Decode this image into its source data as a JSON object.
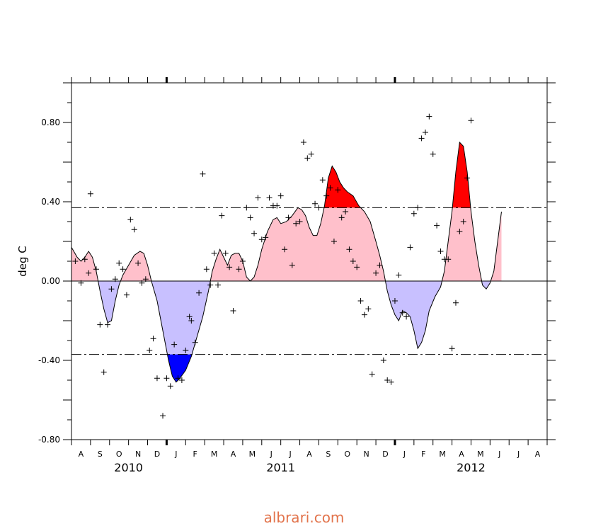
{
  "watermark": "albrari.com",
  "colors": {
    "warm_light": "#ffc0cb",
    "warm_strong": "#ff0000",
    "cool_light": "#c8c0ff",
    "cool_strong": "#0000ff",
    "line": "#000000"
  },
  "chart_data": {
    "type": "area",
    "ylabel": "deg C",
    "xlabel": "",
    "ylim": [
      -0.8,
      1.0
    ],
    "yticks": [
      -0.8,
      -0.4,
      0.0,
      0.4,
      0.8
    ],
    "ytick_labels": [
      "-0.80",
      "-0.40",
      "0.00",
      "0.40",
      "0.80"
    ],
    "thresholds": [
      0.37,
      -0.37
    ],
    "x_unit": "months since Jul 2010 start",
    "xlim": [
      0.5,
      25.5
    ],
    "month_labels": [
      "A",
      "S",
      "O",
      "N",
      "D",
      "J",
      "F",
      "M",
      "A",
      "M",
      "J",
      "J",
      "A",
      "S",
      "O",
      "N",
      "D",
      "J",
      "F",
      "M",
      "A",
      "M",
      "J",
      "J",
      "A"
    ],
    "year_labels": [
      {
        "text": "2010",
        "at": 3.0
      },
      {
        "text": "2011",
        "at": 11.0
      },
      {
        "text": "2012",
        "at": 21.0
      }
    ],
    "smoothed": [
      [
        0.5,
        0.17
      ],
      [
        0.8,
        0.12
      ],
      [
        1.0,
        0.1
      ],
      [
        1.2,
        0.12
      ],
      [
        1.4,
        0.15
      ],
      [
        1.6,
        0.12
      ],
      [
        1.8,
        0.05
      ],
      [
        2.0,
        -0.05
      ],
      [
        2.2,
        -0.14
      ],
      [
        2.4,
        -0.21
      ],
      [
        2.6,
        -0.2
      ],
      [
        2.8,
        -0.1
      ],
      [
        3.0,
        -0.02
      ],
      [
        3.2,
        0.03
      ],
      [
        3.5,
        0.08
      ],
      [
        3.8,
        0.13
      ],
      [
        4.1,
        0.15
      ],
      [
        4.3,
        0.14
      ],
      [
        4.5,
        0.08
      ],
      [
        4.7,
        0.0
      ],
      [
        5.0,
        -0.1
      ],
      [
        5.3,
        -0.25
      ],
      [
        5.6,
        -0.4
      ],
      [
        5.8,
        -0.48
      ],
      [
        6.0,
        -0.51
      ],
      [
        6.2,
        -0.49
      ],
      [
        6.5,
        -0.45
      ],
      [
        6.8,
        -0.38
      ],
      [
        7.1,
        -0.28
      ],
      [
        7.4,
        -0.18
      ],
      [
        7.7,
        -0.05
      ],
      [
        7.9,
        0.05
      ],
      [
        8.1,
        0.11
      ],
      [
        8.3,
        0.16
      ],
      [
        8.5,
        0.12
      ],
      [
        8.7,
        0.08
      ],
      [
        8.9,
        0.13
      ],
      [
        9.1,
        0.14
      ],
      [
        9.3,
        0.14
      ],
      [
        9.5,
        0.1
      ],
      [
        9.7,
        0.02
      ],
      [
        9.9,
        0.0
      ],
      [
        10.1,
        0.02
      ],
      [
        10.3,
        0.08
      ],
      [
        10.5,
        0.16
      ],
      [
        10.8,
        0.25
      ],
      [
        11.1,
        0.31
      ],
      [
        11.3,
        0.32
      ],
      [
        11.5,
        0.29
      ],
      [
        11.8,
        0.3
      ],
      [
        12.1,
        0.33
      ],
      [
        12.4,
        0.37
      ],
      [
        12.6,
        0.36
      ],
      [
        12.8,
        0.33
      ],
      [
        13.0,
        0.27
      ],
      [
        13.2,
        0.23
      ],
      [
        13.4,
        0.23
      ],
      [
        13.6,
        0.29
      ],
      [
        13.8,
        0.38
      ],
      [
        14.0,
        0.52
      ],
      [
        14.2,
        0.58
      ],
      [
        14.4,
        0.55
      ],
      [
        14.6,
        0.5
      ],
      [
        14.8,
        0.47
      ],
      [
        15.0,
        0.45
      ],
      [
        15.3,
        0.43
      ],
      [
        15.6,
        0.38
      ],
      [
        15.9,
        0.35
      ],
      [
        16.2,
        0.3
      ],
      [
        16.5,
        0.2
      ],
      [
        16.7,
        0.13
      ],
      [
        16.9,
        0.05
      ],
      [
        17.1,
        -0.05
      ],
      [
        17.3,
        -0.12
      ],
      [
        17.5,
        -0.17
      ],
      [
        17.7,
        -0.2
      ],
      [
        17.9,
        -0.15
      ],
      [
        18.1,
        -0.16
      ],
      [
        18.3,
        -0.18
      ],
      [
        18.5,
        -0.25
      ],
      [
        18.7,
        -0.34
      ],
      [
        18.9,
        -0.31
      ],
      [
        19.1,
        -0.25
      ],
      [
        19.3,
        -0.15
      ],
      [
        19.6,
        -0.08
      ],
      [
        19.9,
        -0.03
      ],
      [
        20.1,
        0.05
      ],
      [
        20.3,
        0.2
      ],
      [
        20.5,
        0.35
      ],
      [
        20.7,
        0.55
      ],
      [
        20.9,
        0.7
      ],
      [
        21.1,
        0.68
      ],
      [
        21.3,
        0.55
      ],
      [
        21.5,
        0.35
      ],
      [
        21.7,
        0.2
      ],
      [
        21.9,
        0.08
      ],
      [
        22.1,
        -0.02
      ],
      [
        22.3,
        -0.04
      ],
      [
        22.5,
        -0.01
      ],
      [
        22.7,
        0.05
      ],
      [
        22.9,
        0.2
      ],
      [
        23.1,
        0.35
      ]
    ],
    "observations": [
      [
        0.7,
        0.1
      ],
      [
        1.0,
        -0.01
      ],
      [
        1.2,
        0.11
      ],
      [
        1.4,
        0.04
      ],
      [
        1.5,
        0.44
      ],
      [
        1.8,
        0.06
      ],
      [
        2.0,
        -0.22
      ],
      [
        2.2,
        -0.46
      ],
      [
        2.4,
        -0.22
      ],
      [
        2.6,
        -0.04
      ],
      [
        2.8,
        0.01
      ],
      [
        3.0,
        0.09
      ],
      [
        3.2,
        0.06
      ],
      [
        3.4,
        -0.07
      ],
      [
        3.6,
        0.31
      ],
      [
        3.8,
        0.26
      ],
      [
        4.0,
        0.09
      ],
      [
        4.2,
        -0.01
      ],
      [
        4.4,
        0.01
      ],
      [
        4.6,
        -0.35
      ],
      [
        4.8,
        -0.29
      ],
      [
        5.0,
        -0.49
      ],
      [
        5.3,
        -0.68
      ],
      [
        5.5,
        -0.49
      ],
      [
        5.7,
        -0.53
      ],
      [
        5.9,
        -0.32
      ],
      [
        6.1,
        -0.49
      ],
      [
        6.3,
        -0.5
      ],
      [
        6.5,
        -0.35
      ],
      [
        6.7,
        -0.18
      ],
      [
        6.8,
        -0.2
      ],
      [
        7.0,
        -0.31
      ],
      [
        7.2,
        -0.06
      ],
      [
        7.4,
        0.54
      ],
      [
        7.6,
        0.06
      ],
      [
        7.8,
        -0.02
      ],
      [
        8.0,
        0.14
      ],
      [
        8.2,
        -0.02
      ],
      [
        8.4,
        0.33
      ],
      [
        8.6,
        0.14
      ],
      [
        8.8,
        0.07
      ],
      [
        9.0,
        -0.15
      ],
      [
        9.3,
        0.06
      ],
      [
        9.5,
        0.1
      ],
      [
        9.7,
        0.37
      ],
      [
        9.9,
        0.32
      ],
      [
        10.1,
        0.24
      ],
      [
        10.3,
        0.42
      ],
      [
        10.5,
        0.21
      ],
      [
        10.7,
        0.22
      ],
      [
        10.9,
        0.42
      ],
      [
        11.1,
        0.38
      ],
      [
        11.3,
        0.38
      ],
      [
        11.5,
        0.43
      ],
      [
        11.7,
        0.16
      ],
      [
        11.9,
        0.32
      ],
      [
        12.1,
        0.08
      ],
      [
        12.3,
        0.29
      ],
      [
        12.5,
        0.3
      ],
      [
        12.7,
        0.7
      ],
      [
        12.9,
        0.62
      ],
      [
        13.1,
        0.64
      ],
      [
        13.3,
        0.39
      ],
      [
        13.5,
        0.37
      ],
      [
        13.7,
        0.51
      ],
      [
        13.9,
        0.43
      ],
      [
        14.1,
        0.47
      ],
      [
        14.3,
        0.2
      ],
      [
        14.5,
        0.46
      ],
      [
        14.7,
        0.32
      ],
      [
        14.9,
        0.35
      ],
      [
        15.1,
        0.16
      ],
      [
        15.3,
        0.1
      ],
      [
        15.5,
        0.07
      ],
      [
        15.7,
        -0.1
      ],
      [
        15.9,
        -0.17
      ],
      [
        16.1,
        -0.14
      ],
      [
        16.3,
        -0.47
      ],
      [
        16.5,
        0.04
      ],
      [
        16.7,
        0.08
      ],
      [
        16.9,
        -0.4
      ],
      [
        17.1,
        -0.5
      ],
      [
        17.3,
        -0.51
      ],
      [
        17.5,
        -0.1
      ],
      [
        17.7,
        0.03
      ],
      [
        17.9,
        -0.16
      ],
      [
        18.1,
        -0.18
      ],
      [
        18.3,
        0.17
      ],
      [
        18.5,
        0.34
      ],
      [
        18.7,
        0.37
      ],
      [
        18.9,
        0.72
      ],
      [
        19.1,
        0.75
      ],
      [
        19.3,
        0.83
      ],
      [
        19.5,
        0.64
      ],
      [
        19.7,
        0.28
      ],
      [
        19.9,
        0.15
      ],
      [
        20.1,
        0.11
      ],
      [
        20.3,
        0.11
      ],
      [
        20.5,
        -0.34
      ],
      [
        20.7,
        -0.11
      ],
      [
        20.9,
        0.25
      ],
      [
        21.1,
        0.3
      ],
      [
        21.3,
        0.52
      ],
      [
        21.5,
        0.81
      ]
    ]
  }
}
